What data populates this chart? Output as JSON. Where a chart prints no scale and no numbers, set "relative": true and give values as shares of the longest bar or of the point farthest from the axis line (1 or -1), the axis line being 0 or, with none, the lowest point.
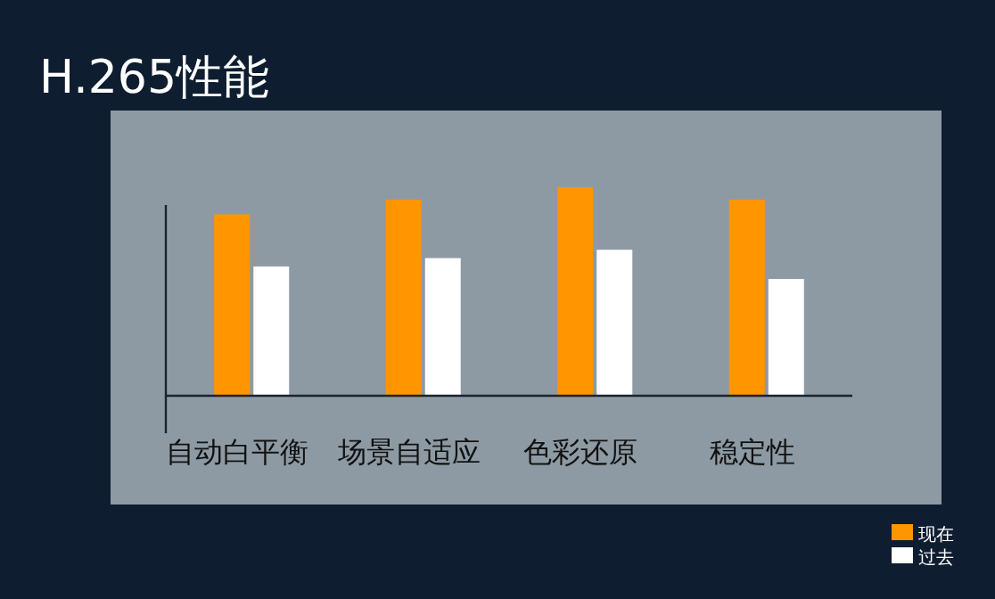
{
  "chart_data": {
    "type": "bar",
    "title": "H.265性能",
    "relative": true,
    "categories": [
      "自动白平衡",
      "场景自适应",
      "色彩还原",
      "稳定性"
    ],
    "series": [
      {
        "name": "现在",
        "color": "#ff9500",
        "values": [
          0.87,
          0.94,
          1,
          0.94
        ]
      },
      {
        "name": "过去",
        "color": "#ffffff",
        "values": [
          0.62,
          0.66,
          0.7,
          0.56
        ]
      }
    ],
    "legend": "bottom right",
    "grid": false
  }
}
